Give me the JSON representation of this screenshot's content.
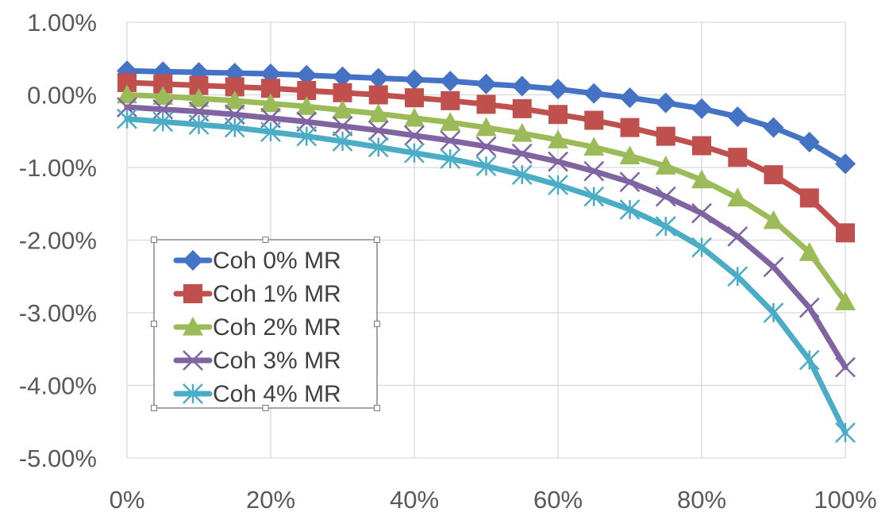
{
  "chart_data": {
    "type": "line",
    "title": "",
    "xlabel": "",
    "ylabel": "",
    "x": [
      0,
      5,
      10,
      15,
      20,
      25,
      30,
      35,
      40,
      45,
      50,
      55,
      60,
      65,
      70,
      75,
      80,
      85,
      90,
      95,
      100
    ],
    "xlim": [
      0,
      100
    ],
    "ylim": [
      -5.0,
      1.0
    ],
    "x_ticks": [
      {
        "value": 0,
        "label": "0%"
      },
      {
        "value": 20,
        "label": "20%"
      },
      {
        "value": 40,
        "label": "40%"
      },
      {
        "value": 60,
        "label": "60%"
      },
      {
        "value": 80,
        "label": "80%"
      },
      {
        "value": 100,
        "label": "100%"
      }
    ],
    "y_ticks": [
      {
        "value": 1,
        "label": "1.00%"
      },
      {
        "value": 0,
        "label": "0.00%"
      },
      {
        "value": -1,
        "label": "-1.00%"
      },
      {
        "value": -2,
        "label": "-2.00%"
      },
      {
        "value": -3,
        "label": "-3.00%"
      },
      {
        "value": -4,
        "label": "-4.00%"
      },
      {
        "value": -5,
        "label": "-5.00%"
      }
    ],
    "grid": true,
    "legend_position": "bottom-left",
    "series": [
      {
        "name": "Coh 0% MR",
        "color": "#4472C4",
        "marker": "diamond",
        "values": [
          0.33,
          0.32,
          0.31,
          0.3,
          0.29,
          0.27,
          0.25,
          0.23,
          0.21,
          0.19,
          0.15,
          0.12,
          0.08,
          0.02,
          -0.04,
          -0.11,
          -0.19,
          -0.3,
          -0.45,
          -0.65,
          -0.95
        ]
      },
      {
        "name": "Coh 1% MR",
        "color": "#C0504D",
        "marker": "square",
        "values": [
          0.17,
          0.15,
          0.13,
          0.11,
          0.09,
          0.06,
          0.03,
          0.0,
          -0.04,
          -0.08,
          -0.13,
          -0.19,
          -0.27,
          -0.35,
          -0.45,
          -0.57,
          -0.7,
          -0.86,
          -1.1,
          -1.42,
          -1.9
        ]
      },
      {
        "name": "Coh 2% MR",
        "color": "#9BBB59",
        "marker": "triangle",
        "values": [
          0.0,
          -0.02,
          -0.05,
          -0.08,
          -0.12,
          -0.16,
          -0.21,
          -0.26,
          -0.32,
          -0.38,
          -0.45,
          -0.53,
          -0.62,
          -0.72,
          -0.84,
          -0.98,
          -1.17,
          -1.42,
          -1.73,
          -2.17,
          -2.85
        ]
      },
      {
        "name": "Coh 3% MR",
        "color": "#8064A2",
        "marker": "x",
        "values": [
          -0.17,
          -0.2,
          -0.23,
          -0.27,
          -0.32,
          -0.37,
          -0.43,
          -0.49,
          -0.56,
          -0.63,
          -0.71,
          -0.81,
          -0.92,
          -1.05,
          -1.2,
          -1.4,
          -1.63,
          -1.95,
          -2.37,
          -2.93,
          -3.75
        ]
      },
      {
        "name": "Coh 4% MR",
        "color": "#4BACC6",
        "marker": "star",
        "values": [
          -0.33,
          -0.37,
          -0.41,
          -0.45,
          -0.51,
          -0.57,
          -0.64,
          -0.72,
          -0.8,
          -0.88,
          -0.98,
          -1.1,
          -1.24,
          -1.4,
          -1.58,
          -1.81,
          -2.1,
          -2.5,
          -3.0,
          -3.65,
          -4.65
        ]
      }
    ]
  }
}
